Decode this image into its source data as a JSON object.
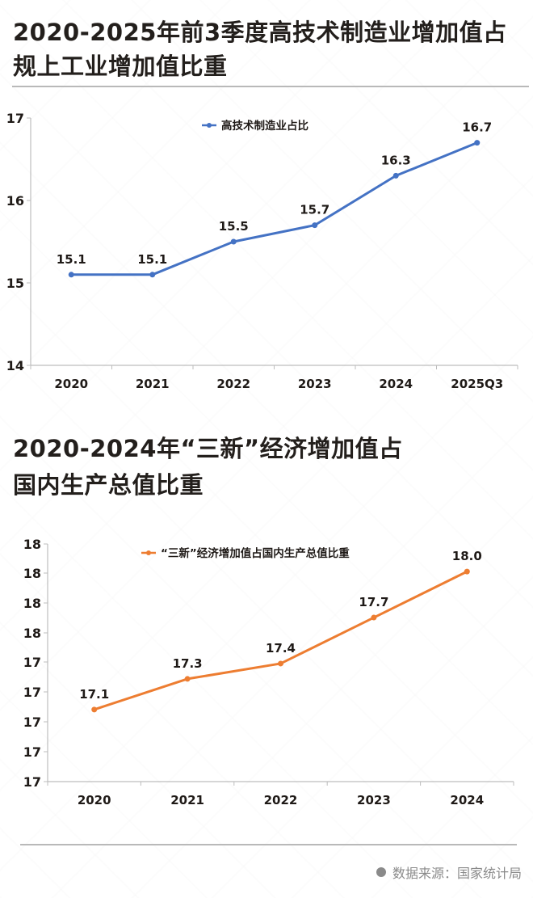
{
  "chart1": {
    "title_line1": "2020-2025年前3季度高技术制造业增加值占",
    "title_line2": "规上工业增加值比重",
    "legend": "高技术制造业占比",
    "color": "#4472C4"
  },
  "chart2": {
    "title_line1": "2020-2024年“三新”经济增加值占",
    "title_line2": "国内生产总值比重",
    "legend": "“三新”经济增加值占国内生产总值比重",
    "color": "#ED7D31"
  },
  "footer": {
    "source": "数据来源：国家统计局"
  },
  "chart_data": [
    {
      "type": "line",
      "title": "2020-2025年前3季度高技术制造业增加值占规上工业增加值比重",
      "categories": [
        "2020",
        "2021",
        "2022",
        "2023",
        "2024",
        "2025Q3"
      ],
      "series": [
        {
          "name": "高技术制造业占比",
          "values": [
            15.1,
            15.1,
            15.5,
            15.7,
            16.3,
            16.7
          ],
          "color": "#4472C4"
        }
      ],
      "data_labels": [
        "15.1",
        "15.1",
        "15.5",
        "15.7",
        "16.3",
        "16.7"
      ],
      "xlabel": "",
      "ylabel": "",
      "ylim": [
        14,
        17
      ],
      "yticks": [
        "14",
        "15",
        "16",
        "17"
      ],
      "grid": false,
      "legend_position": "top-center"
    },
    {
      "type": "line",
      "title": "2020-2024年“三新”经济增加值占国内生产总值比重",
      "categories": [
        "2020",
        "2021",
        "2022",
        "2023",
        "2024"
      ],
      "series": [
        {
          "name": "“三新”经济增加值占国内生产总值比重",
          "values": [
            17.1,
            17.3,
            17.4,
            17.7,
            18.0
          ],
          "color": "#ED7D31"
        }
      ],
      "data_labels": [
        "17.1",
        "17.3",
        "17.4",
        "17.7",
        "18.0"
      ],
      "xlabel": "",
      "ylabel": "",
      "ylim": [
        16.6,
        18.2
      ],
      "yticks": [
        "17",
        "17",
        "17",
        "17",
        "17",
        "18",
        "18",
        "18",
        "18"
      ],
      "grid": false,
      "legend_position": "top-center"
    }
  ]
}
